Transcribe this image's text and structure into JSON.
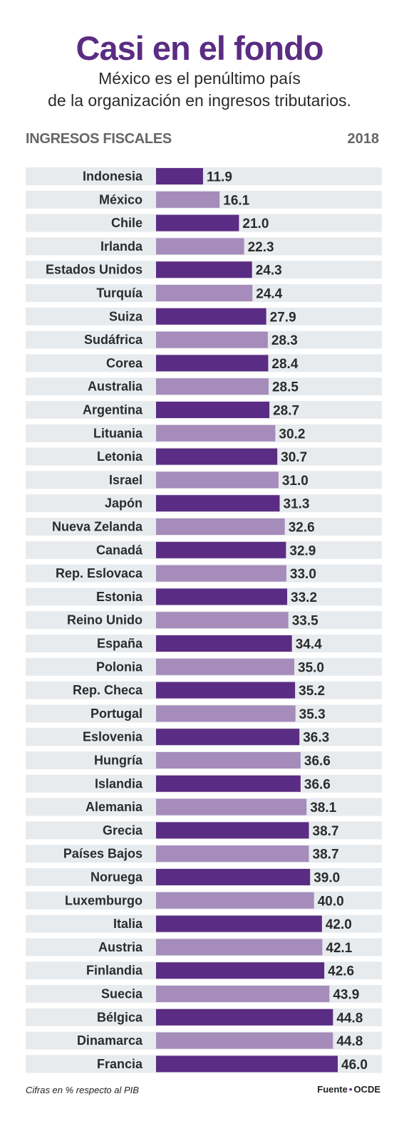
{
  "header": {
    "title": "Casi en el fondo",
    "subtitle_line1": "México es el penúltimo país",
    "subtitle_line2": "de la organización en ingresos tributarios.",
    "category_label": "INGRESOS FISCALES",
    "year": "2018"
  },
  "footer": {
    "note": "Cifras en % respecto al PIB",
    "source_label": "Fuente",
    "source_value": "OCDE"
  },
  "colors": {
    "dark_bar": "#5b2c83",
    "light_bar": "#a58cbb",
    "row_bg": "#e8ebee",
    "title": "#5b2c83"
  },
  "chart_data": {
    "type": "bar",
    "orientation": "horizontal",
    "title": "Casi en el fondo",
    "xlim": [
      0,
      46.0
    ],
    "categories": [
      "Indonesia",
      "México",
      "Chile",
      "Irlanda",
      "Estados Unidos",
      "Turquía",
      "Suiza",
      "Sudáfrica",
      "Corea",
      "Australia",
      "Argentina",
      "Lituania",
      "Letonia",
      "Israel",
      "Japón",
      "Nueva Zelanda",
      "Canadá",
      "Rep. Eslovaca",
      "Estonia",
      "Reino Unido",
      "España",
      "Polonia",
      "Rep. Checa",
      "Portugal",
      "Eslovenia",
      "Hungría",
      "Islandia",
      "Alemania",
      "Grecia",
      "Países Bajos",
      "Noruega",
      "Luxemburgo",
      "Italia",
      "Austria",
      "Finlandia",
      "Suecia",
      "Bélgica",
      "Dinamarca",
      "Francia"
    ],
    "values": [
      11.9,
      16.1,
      21.0,
      22.3,
      24.3,
      24.4,
      27.9,
      28.3,
      28.4,
      28.5,
      28.7,
      30.2,
      30.7,
      31.0,
      31.3,
      32.6,
      32.9,
      33.0,
      33.2,
      33.5,
      34.4,
      35.0,
      35.2,
      35.3,
      36.3,
      36.6,
      36.6,
      38.1,
      38.7,
      38.7,
      39.0,
      40.0,
      42.0,
      42.1,
      42.6,
      43.9,
      44.8,
      44.8,
      46.0
    ],
    "value_labels": [
      "11.9",
      "16.1",
      "21.0",
      "22.3",
      "24.3",
      "24.4",
      "27.9",
      "28.3",
      "28.4",
      "28.5",
      "28.7",
      "30.2",
      "30.7",
      "31.0",
      "31.3",
      "32.6",
      "32.9",
      "33.0",
      "33.2",
      "33.5",
      "34.4",
      "35.0",
      "35.2",
      "35.3",
      "36.3",
      "36.6",
      "36.6",
      "38.1",
      "38.7",
      "38.7",
      "39.0",
      "40.0",
      "42.0",
      "42.1",
      "42.6",
      "43.9",
      "44.8",
      "44.8",
      "46.0"
    ]
  }
}
